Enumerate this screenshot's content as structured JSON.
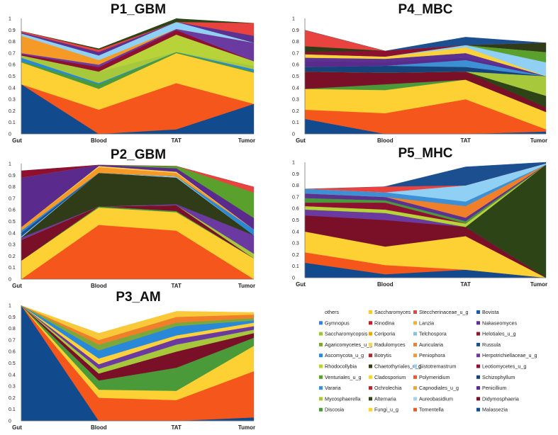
{
  "chart_data": [
    {
      "type": "area",
      "title": "P1_GBM",
      "categories": [
        "Gut",
        "Blood",
        "TAT",
        "Tumor"
      ],
      "ylim": [
        0,
        1
      ],
      "yticks": [
        "0",
        "0.1",
        "0.2",
        "0.3",
        "0.4",
        "0.5",
        "0.6",
        "0.7",
        "0.8",
        "0.9",
        "1"
      ],
      "series": [
        {
          "name": "Malassezia",
          "values": [
            0.43,
            0.0,
            0.04,
            0.26
          ]
        },
        {
          "name": "Tomentella",
          "values": [
            0.0,
            0.21,
            0.4,
            0.0
          ]
        },
        {
          "name": "Fungi_u_g",
          "values": [
            0.19,
            0.18,
            0.26,
            0.27
          ]
        },
        {
          "name": "Discosia",
          "values": [
            0.01,
            0.04,
            0.01,
            0.01
          ]
        },
        {
          "name": "Ascomycota_u_g",
          "values": [
            0.03,
            0.01,
            0.0,
            0.02
          ]
        },
        {
          "name": "Mycosphaerella",
          "values": [
            0.02,
            0.1,
            0.0,
            0.03
          ]
        },
        {
          "name": "Rhodocollybia",
          "values": [
            0.0,
            0.0,
            0.15,
            0.04
          ]
        },
        {
          "name": "Leotiomycetes_u_g",
          "values": [
            0.01,
            0.04,
            0.04,
            0.0
          ]
        },
        {
          "name": "Herpotrichiellaceae_u_g",
          "values": [
            0.01,
            0.02,
            0.01,
            0.16
          ]
        },
        {
          "name": "Peniophora",
          "values": [
            0.15,
            0.04,
            0.0,
            0.0
          ]
        },
        {
          "name": "Sistotremastrum",
          "values": [
            0.02,
            0.04,
            0.06,
            0.0
          ]
        },
        {
          "name": "Nakaseomyces",
          "values": [
            0.01,
            0.03,
            0.0,
            0.06
          ]
        },
        {
          "name": "Steccherinaceae_u_g",
          "values": [
            0.01,
            0.02,
            0.0,
            0.11
          ]
        },
        {
          "name": "Alternaria",
          "values": [
            0.0,
            0.01,
            0.04,
            0.0
          ]
        },
        {
          "name": "others",
          "values": [
            0.11,
            0.15,
            0.0,
            0.04
          ]
        }
      ]
    },
    {
      "type": "area",
      "title": "P2_GBM",
      "categories": [
        "Gut",
        "Blood",
        "TAT",
        "Tumor"
      ],
      "ylim": [
        0,
        1
      ],
      "yticks": [
        "0",
        "0.1",
        "0.2",
        "0.3",
        "0.4",
        "0.5",
        "0.6",
        "0.7",
        "0.8",
        "0.9",
        "1"
      ],
      "series": [
        {
          "name": "Tomentella",
          "values": [
            0.0,
            0.47,
            0.42,
            0.0
          ]
        },
        {
          "name": "Fungi_u_g",
          "values": [
            0.16,
            0.15,
            0.16,
            0.18
          ]
        },
        {
          "name": "Discosia",
          "values": [
            0.0,
            0.01,
            0.01,
            0.0
          ]
        },
        {
          "name": "Didymosphaeria",
          "values": [
            0.18,
            0.0,
            0.05,
            0.0
          ]
        },
        {
          "name": "Mycosphaerella",
          "values": [
            0.0,
            0.0,
            0.0,
            0.04
          ]
        },
        {
          "name": "Herpotrichiellaceae_u_g",
          "values": [
            0.02,
            0.0,
            0.01,
            0.16
          ]
        },
        {
          "name": "Chaetothyriales_u_g",
          "values": [
            0.0,
            0.29,
            0.23,
            0.0
          ]
        },
        {
          "name": "Sistotremastrum",
          "values": [
            0.01,
            0.0,
            0.01,
            0.0
          ]
        },
        {
          "name": "Russula",
          "values": [
            0.03,
            0.0,
            0.0,
            0.0
          ]
        },
        {
          "name": "Ascomycota_u_g",
          "values": [
            0.02,
            0.0,
            0.0,
            0.05
          ]
        },
        {
          "name": "Peniophora",
          "values": [
            0.03,
            0.05,
            0.03,
            0.0
          ]
        },
        {
          "name": "Radulomyces",
          "values": [
            0.0,
            0.01,
            0.01,
            0.0
          ]
        },
        {
          "name": "Penicillium",
          "values": [
            0.43,
            0.01,
            0.03,
            0.1
          ]
        },
        {
          "name": "Venturiales_u_g",
          "values": [
            0.0,
            0.0,
            0.02,
            0.22
          ]
        },
        {
          "name": "Steccherinaceae_u_g",
          "values": [
            0.0,
            0.0,
            0.0,
            0.05
          ]
        },
        {
          "name": "Leotiomycetes_u_g",
          "values": [
            0.06,
            0.0,
            0.0,
            0.0
          ]
        },
        {
          "name": "others",
          "values": [
            0.06,
            0.01,
            0.02,
            0.2
          ]
        }
      ]
    },
    {
      "type": "area",
      "title": "P3_AM",
      "categories": [
        "Gut",
        "Blood",
        "TAT",
        "Tumor"
      ],
      "ylim": [
        0,
        1
      ],
      "yticks": [
        "0",
        "0.1",
        "0.2",
        "0.3",
        "0.4",
        "0.5",
        "0.6",
        "0.7",
        "0.8",
        "0.9",
        "1"
      ],
      "series": [
        {
          "name": "Malassezia",
          "values": [
            1.0,
            0.0,
            0.0,
            0.03
          ]
        },
        {
          "name": "Tomentella",
          "values": [
            0.0,
            0.2,
            0.18,
            0.4
          ]
        },
        {
          "name": "Fungi_u_g",
          "values": [
            0.0,
            0.07,
            0.08,
            0.22
          ]
        },
        {
          "name": "Discosia",
          "values": [
            0.0,
            0.08,
            0.2,
            0.07
          ]
        },
        {
          "name": "Didymosphaeria",
          "values": [
            0.0,
            0.06,
            0.14,
            0.04
          ]
        },
        {
          "name": "Mycosphaerella",
          "values": [
            0.0,
            0.04,
            0.06,
            0.03
          ]
        },
        {
          "name": "Herpotrichiellaceae_u_g",
          "values": [
            0.0,
            0.04,
            0.05,
            0.03
          ]
        },
        {
          "name": "Cladosporium",
          "values": [
            0.0,
            0.05,
            0.03,
            0.03
          ]
        },
        {
          "name": "Ascomycota_u_g",
          "values": [
            0.0,
            0.07,
            0.08,
            0.02
          ]
        },
        {
          "name": "Agaricomycetes_u_g",
          "values": [
            0.0,
            0.05,
            0.03,
            0.02
          ]
        },
        {
          "name": "Auricularia",
          "values": [
            0.0,
            0.04,
            0.05,
            0.03
          ]
        },
        {
          "name": "Saccharomyces",
          "values": [
            0.0,
            0.06,
            0.05,
            0.02
          ]
        },
        {
          "name": "others",
          "values": [
            0.0,
            0.15,
            0.04,
            0.05
          ]
        }
      ]
    },
    {
      "type": "area",
      "title": "P4_MBC",
      "categories": [
        "Gut",
        "Blood",
        "TAT",
        "Tumor"
      ],
      "ylim": [
        0,
        1
      ],
      "yticks": [
        "0",
        "0.1",
        "0.2",
        "0.3",
        "0.4",
        "0.5",
        "0.6",
        "0.7",
        "0.8",
        "0.9",
        "1"
      ],
      "series": [
        {
          "name": "Malassezia",
          "values": [
            0.13,
            0.0,
            0.0,
            0.02
          ]
        },
        {
          "name": "Tomentella",
          "values": [
            0.08,
            0.18,
            0.3,
            0.02
          ]
        },
        {
          "name": "Fungi_u_g",
          "values": [
            0.18,
            0.2,
            0.17,
            0.15
          ]
        },
        {
          "name": "Discosia",
          "values": [
            0.0,
            0.05,
            0.0,
            0.0
          ]
        },
        {
          "name": "Didymosphaeria",
          "values": [
            0.15,
            0.1,
            0.07,
            0.04
          ]
        },
        {
          "name": "Alternaria",
          "values": [
            0.0,
            0.0,
            0.0,
            0.1
          ]
        },
        {
          "name": "Mycosphaerella",
          "values": [
            0.0,
            0.0,
            0.0,
            0.17
          ]
        },
        {
          "name": "Schizophyllum",
          "values": [
            0.04,
            0.06,
            0.04,
            0.0
          ]
        },
        {
          "name": "Vararia",
          "values": [
            0.0,
            0.0,
            0.06,
            0.0
          ]
        },
        {
          "name": "Penicillium",
          "values": [
            0.05,
            0.03,
            0.02,
            0.0
          ]
        },
        {
          "name": "Nakaseomyces",
          "values": [
            0.03,
            0.03,
            0.04,
            0.0
          ]
        },
        {
          "name": "Cladosporium",
          "values": [
            0.03,
            0.02,
            0.05,
            0.0
          ]
        },
        {
          "name": "Sistotremastrum",
          "values": [
            0.0,
            0.0,
            0.02,
            0.12
          ]
        },
        {
          "name": "Venturiales_u_g",
          "values": [
            0.0,
            0.0,
            0.0,
            0.09
          ]
        },
        {
          "name": "Leotiomycetes_u_g",
          "values": [
            0.02,
            0.05,
            0.0,
            0.0
          ]
        },
        {
          "name": "Chaetothyriales_u_g",
          "values": [
            0.05,
            0.0,
            0.0,
            0.08
          ]
        },
        {
          "name": "Steccherinaceae_u_g",
          "values": [
            0.14,
            0.0,
            0.0,
            0.0
          ]
        },
        {
          "name": "Russula",
          "values": [
            0.0,
            0.0,
            0.07,
            0.0
          ]
        },
        {
          "name": "others",
          "values": [
            0.03,
            0.06,
            0.08,
            0.06
          ]
        }
      ]
    },
    {
      "type": "area",
      "title": "P5_MHC",
      "categories": [
        "Gut",
        "Blood",
        "TAT",
        "Tumor"
      ],
      "ylim": [
        0,
        1
      ],
      "yticks": [
        "0",
        "0.1",
        "0.2",
        "0.3",
        "0.4",
        "0.5",
        "0.6",
        "0.7",
        "0.8",
        "0.9",
        "1"
      ],
      "series": [
        {
          "name": "Malassezia",
          "values": [
            0.13,
            0.03,
            0.07,
            0.0
          ]
        },
        {
          "name": "Tomentella",
          "values": [
            0.09,
            0.08,
            0.0,
            0.0
          ]
        },
        {
          "name": "Fungi_u_g",
          "values": [
            0.18,
            0.16,
            0.29,
            0.0
          ]
        },
        {
          "name": "Didymosphaeria",
          "values": [
            0.14,
            0.23,
            0.08,
            0.0
          ]
        },
        {
          "name": "Herpotrichiellaceae_u_g",
          "values": [
            0.05,
            0.06,
            0.0,
            0.0
          ]
        },
        {
          "name": "Alternaria",
          "values": [
            0.0,
            0.0,
            0.0,
            0.98
          ]
        },
        {
          "name": "Rhodocollybia",
          "values": [
            0.03,
            0.03,
            0.03,
            0.0
          ]
        },
        {
          "name": "Leotiomycetes_u_g",
          "values": [
            0.03,
            0.06,
            0.0,
            0.0
          ]
        },
        {
          "name": "Discosia",
          "values": [
            0.04,
            0.02,
            0.02,
            0.0
          ]
        },
        {
          "name": "Nakaseomyces",
          "values": [
            0.04,
            0.03,
            0.03,
            0.0
          ]
        },
        {
          "name": "Auricularia",
          "values": [
            0.0,
            0.0,
            0.1,
            0.0
          ]
        },
        {
          "name": "Vararia",
          "values": [
            0.04,
            0.04,
            0.04,
            0.0
          ]
        },
        {
          "name": "Sistotremastrum",
          "values": [
            0.0,
            0.0,
            0.14,
            0.01
          ]
        },
        {
          "name": "Steccherinaceae_u_g",
          "values": [
            0.0,
            0.05,
            0.0,
            0.0
          ]
        },
        {
          "name": "Russula",
          "values": [
            0.0,
            0.0,
            0.16,
            0.01
          ]
        },
        {
          "name": "others",
          "values": [
            0.06,
            0.0,
            0.0,
            0.0
          ]
        }
      ]
    }
  ],
  "legend": {
    "columns": [
      [
        "others",
        "Gymnopus",
        "Saccharomycopsis",
        "Agaricomycetes_u_g",
        "Ascomycota_u_g",
        "Rhodocollybia",
        "Venturiales_u_g",
        "Vararia",
        "Mycosphaerella",
        "Discosia"
      ],
      [
        "Saccharomyces",
        "Rinodina",
        "Ceriporia",
        "Radulomyces",
        "Botrytis",
        "Chaetothyriales_u_g",
        "Cladosporium",
        "Ochrolechia",
        "Alternaria",
        "Fungi_u_g"
      ],
      [
        "Steccherinaceae_u_g",
        "Lanzia",
        "Telchospora",
        "Auricularia",
        "Peniophora",
        "Sistotremastrum",
        "Polymeridium",
        "Capnodiales_u_g",
        "Aureobasidium",
        "Tomentella"
      ],
      [
        "Bovista",
        "Nakaseomyces",
        "Helotiales_u_g",
        "Russula",
        "Herpotrichiellaceae_u_g",
        "Leotiomycetes_u_g",
        "Schizophyllum",
        "Penicillium",
        "Didymosphaeria",
        "Malassezia"
      ]
    ]
  },
  "colors": {
    "others": "#ffffff",
    "Saccharomyces": "#f9c93a",
    "Steccherinaceae_u_g": "#e8433e",
    "Bovista": "#1f5aa6",
    "Gymnopus": "#3d7fd0",
    "Rinodina": "#c0202a",
    "Lanzia": "#f7b21c",
    "Nakaseomyces": "#5b3192",
    "Saccharomycopsis": "#9fc43a",
    "Ceriporia": "#e7a80f",
    "Telchospora": "#7ec3ea",
    "Helotiales_u_g": "#8a1a2c",
    "Agaricomycetes_u_g": "#7aa83a",
    "Radulomyces": "#f8d55a",
    "Auricularia": "#f07f2a",
    "Russula": "#1b4f8f",
    "Ascomycota_u_g": "#2a88d8",
    "Botrytis": "#a82e2e",
    "Peniophora": "#f59a27",
    "Herpotrichiellaceae_u_g": "#6a3aa0",
    "Rhodocollybia": "#b8d33a",
    "Chaetothyriales_u_g": "#2f3c17",
    "Sistotremastrum": "#8fd0f4",
    "Leotiomycetes_u_g": "#8e1030",
    "Venturiales_u_g": "#5aa02c",
    "Cladosporium": "#fbd23b",
    "Polymeridium": "#ec5a1f",
    "Schizophyllum": "#16437a",
    "Vararia": "#3e90d4",
    "Ochrolechia": "#b3282a",
    "Capnodiales_u_g": "#f0a830",
    "Penicillium": "#5a2a8c",
    "Mycosphaerella": "#a8c83c",
    "Alternaria": "#2d4416",
    "Aureobasidium": "#9ed6f0",
    "Didymosphaeria": "#7a1028",
    "Discosia": "#4a9a3a",
    "Fungi_u_g": "#fdd033",
    "Tomentella": "#f5561b",
    "Malassezia": "#124a8e"
  }
}
